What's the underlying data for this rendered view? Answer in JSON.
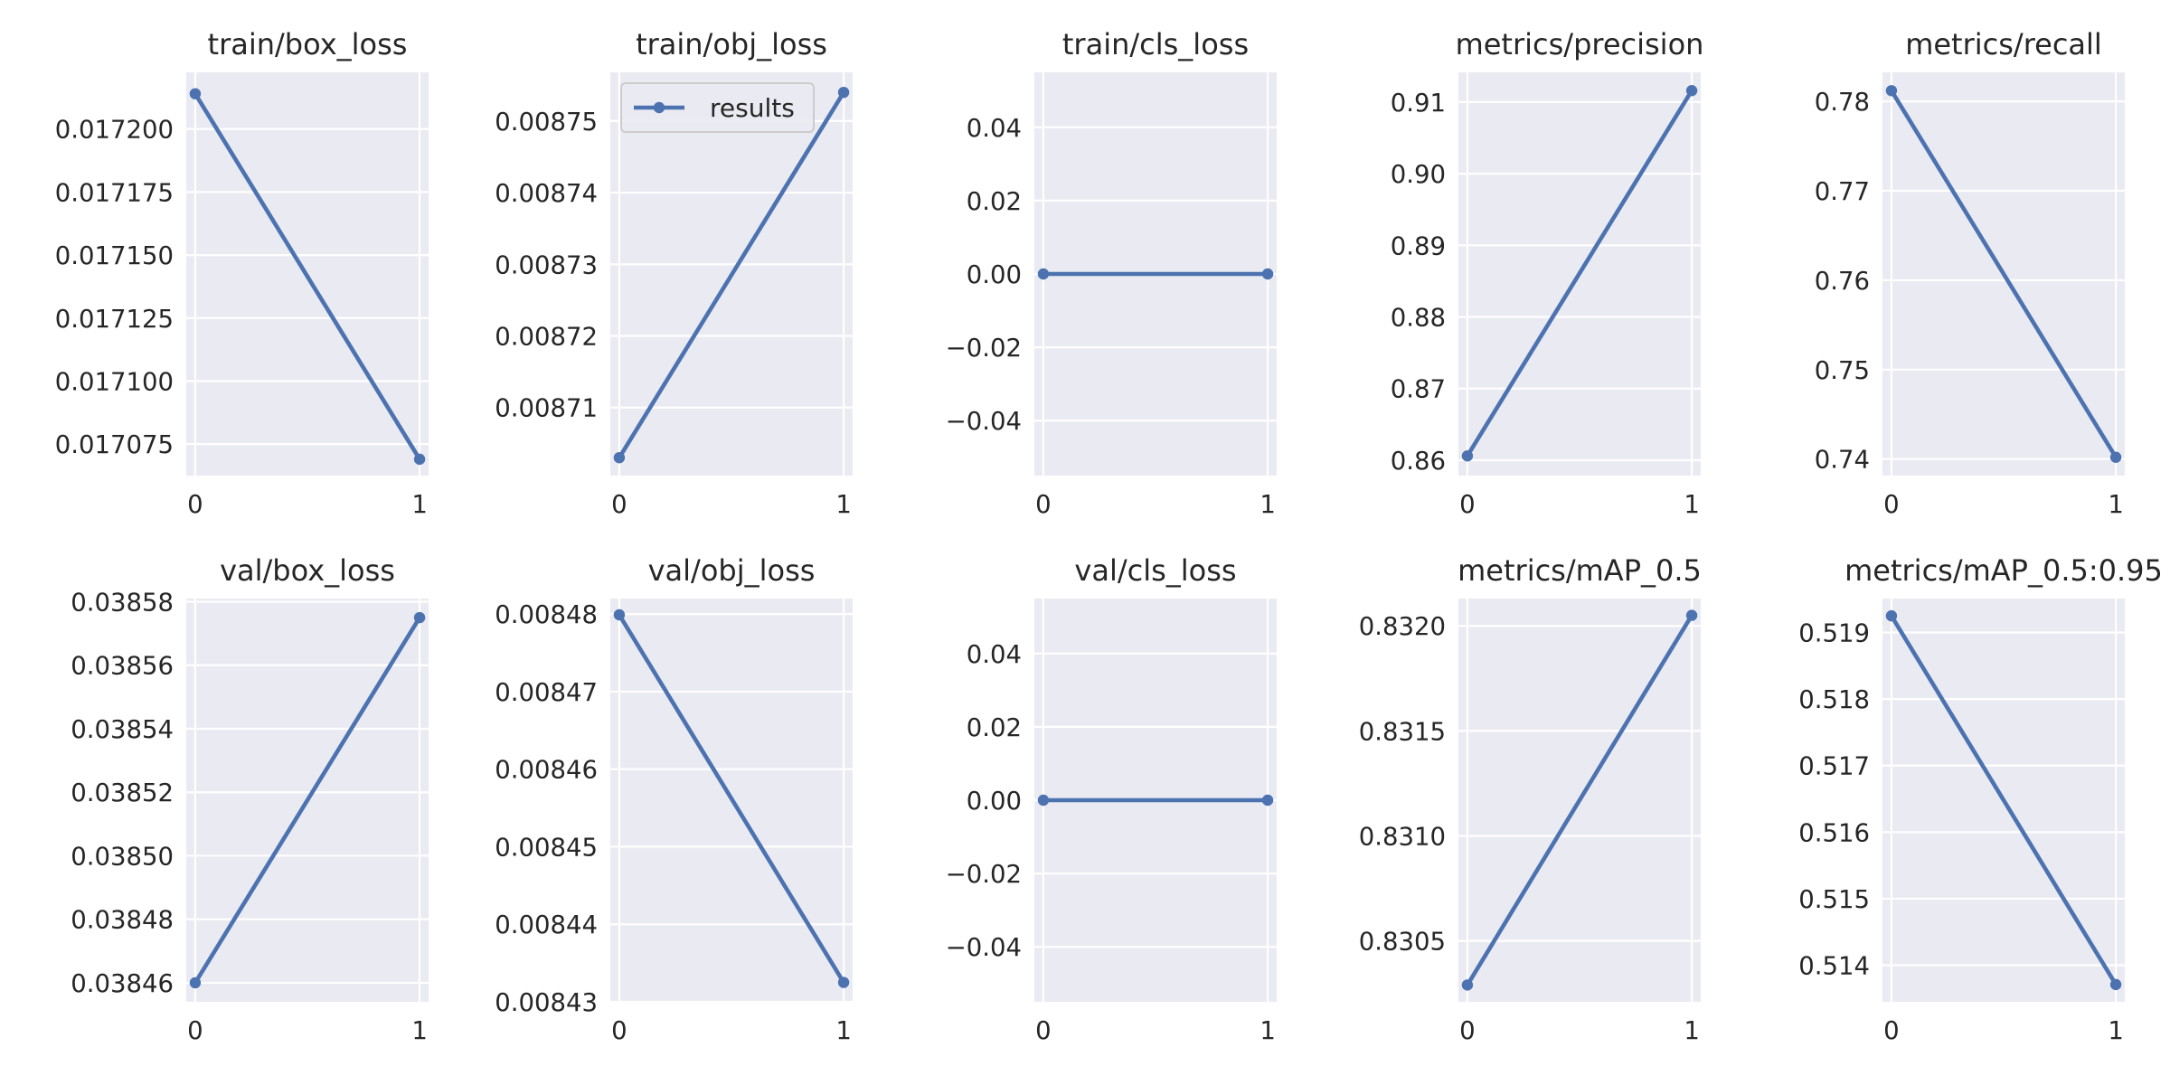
{
  "chart_data": [
    {
      "type": "line",
      "title": "train/box_loss",
      "x": [
        0,
        1
      ],
      "series": [
        {
          "values": [
            0.017214,
            0.017069
          ]
        }
      ],
      "xlim": [
        -0.04,
        1.04
      ],
      "ylim": [
        0.0170625,
        0.0172225
      ],
      "xticks": [
        "0",
        "1"
      ],
      "yticks": [
        {
          "v": 0.017075,
          "label": "0.017075"
        },
        {
          "v": 0.0171,
          "label": "0.017100"
        },
        {
          "v": 0.017125,
          "label": "0.017125"
        },
        {
          "v": 0.01715,
          "label": "0.017150"
        },
        {
          "v": 0.017175,
          "label": "0.017175"
        },
        {
          "v": 0.0172,
          "label": "0.017200"
        }
      ],
      "grid": true
    },
    {
      "type": "line",
      "title": "train/obj_loss",
      "x": [
        0,
        1
      ],
      "series": [
        {
          "name": "results",
          "values": [
            0.008703,
            0.008754
          ]
        }
      ],
      "xlim": [
        -0.04,
        1.04
      ],
      "ylim": [
        0.0087005,
        0.0087568
      ],
      "xticks": [
        "0",
        "1"
      ],
      "yticks": [
        {
          "v": 0.00871,
          "label": "0.00871"
        },
        {
          "v": 0.00872,
          "label": "0.00872"
        },
        {
          "v": 0.00873,
          "label": "0.00873"
        },
        {
          "v": 0.00874,
          "label": "0.00874"
        },
        {
          "v": 0.00875,
          "label": "0.00875"
        }
      ],
      "grid": true,
      "legend": "top-left"
    },
    {
      "type": "line",
      "title": "train/cls_loss",
      "x": [
        0,
        1
      ],
      "series": [
        {
          "values": [
            0,
            0
          ]
        }
      ],
      "xlim": [
        -0.04,
        1.04
      ],
      "ylim": [
        -0.055,
        0.055
      ],
      "xticks": [
        "0",
        "1"
      ],
      "yticks": [
        {
          "v": -0.04,
          "label": "−0.04"
        },
        {
          "v": -0.02,
          "label": "−0.02"
        },
        {
          "v": 0,
          "label": "0.00"
        },
        {
          "v": 0.02,
          "label": "0.02"
        },
        {
          "v": 0.04,
          "label": "0.04"
        }
      ],
      "grid": true
    },
    {
      "type": "line",
      "title": "metrics/precision",
      "x": [
        0,
        1
      ],
      "series": [
        {
          "values": [
            0.8606,
            0.9116
          ]
        }
      ],
      "xlim": [
        -0.04,
        1.04
      ],
      "ylim": [
        0.85785,
        0.91415
      ],
      "xticks": [
        "0",
        "1"
      ],
      "yticks": [
        {
          "v": 0.86,
          "label": "0.86"
        },
        {
          "v": 0.87,
          "label": "0.87"
        },
        {
          "v": 0.88,
          "label": "0.88"
        },
        {
          "v": 0.89,
          "label": "0.89"
        },
        {
          "v": 0.9,
          "label": "0.90"
        },
        {
          "v": 0.91,
          "label": "0.91"
        }
      ],
      "grid": true
    },
    {
      "type": "line",
      "title": "metrics/recall",
      "x": [
        0,
        1
      ],
      "series": [
        {
          "values": [
            0.7812,
            0.7402
          ]
        }
      ],
      "xlim": [
        -0.04,
        1.04
      ],
      "ylim": [
        0.73815,
        0.78325
      ],
      "xticks": [
        "0",
        "1"
      ],
      "yticks": [
        {
          "v": 0.74,
          "label": "0.74"
        },
        {
          "v": 0.75,
          "label": "0.75"
        },
        {
          "v": 0.76,
          "label": "0.76"
        },
        {
          "v": 0.77,
          "label": "0.77"
        },
        {
          "v": 0.78,
          "label": "0.78"
        }
      ],
      "grid": true
    },
    {
      "type": "line",
      "title": "val/box_loss",
      "x": [
        0,
        1
      ],
      "series": [
        {
          "values": [
            0.03846,
            0.038575
          ]
        }
      ],
      "xlim": [
        -0.04,
        1.04
      ],
      "ylim": [
        0.038454,
        0.038581
      ],
      "xticks": [
        "0",
        "1"
      ],
      "yticks": [
        {
          "v": 0.03846,
          "label": "0.03846"
        },
        {
          "v": 0.03848,
          "label": "0.03848"
        },
        {
          "v": 0.0385,
          "label": "0.03850"
        },
        {
          "v": 0.03852,
          "label": "0.03852"
        },
        {
          "v": 0.03854,
          "label": "0.03854"
        },
        {
          "v": 0.03856,
          "label": "0.03856"
        },
        {
          "v": 0.03858,
          "label": "0.03858"
        }
      ],
      "grid": true
    },
    {
      "type": "line",
      "title": "val/obj_loss",
      "x": [
        0,
        1
      ],
      "series": [
        {
          "values": [
            0.0084799,
            0.0084325
          ]
        }
      ],
      "xlim": [
        -0.04,
        1.04
      ],
      "ylim": [
        0.00843,
        0.008482
      ],
      "xticks": [
        "0",
        "1"
      ],
      "yticks": [
        {
          "v": 0.00843,
          "label": "0.00843"
        },
        {
          "v": 0.00844,
          "label": "0.00844"
        },
        {
          "v": 0.00845,
          "label": "0.00845"
        },
        {
          "v": 0.00846,
          "label": "0.00846"
        },
        {
          "v": 0.00847,
          "label": "0.00847"
        },
        {
          "v": 0.00848,
          "label": "0.00848"
        }
      ],
      "grid": true
    },
    {
      "type": "line",
      "title": "val/cls_loss",
      "x": [
        0,
        1
      ],
      "series": [
        {
          "values": [
            0,
            0
          ]
        }
      ],
      "xlim": [
        -0.04,
        1.04
      ],
      "ylim": [
        -0.055,
        0.055
      ],
      "xticks": [
        "0",
        "1"
      ],
      "yticks": [
        {
          "v": -0.04,
          "label": "−0.04"
        },
        {
          "v": -0.02,
          "label": "−0.02"
        },
        {
          "v": 0,
          "label": "0.00"
        },
        {
          "v": 0.02,
          "label": "0.02"
        },
        {
          "v": 0.04,
          "label": "0.04"
        }
      ],
      "grid": true
    },
    {
      "type": "line",
      "title": "metrics/mAP_0.5",
      "x": [
        0,
        1
      ],
      "series": [
        {
          "values": [
            0.83029,
            0.83205
          ]
        }
      ],
      "xlim": [
        -0.04,
        1.04
      ],
      "ylim": [
        0.83021,
        0.83213
      ],
      "xticks": [
        "0",
        "1"
      ],
      "yticks": [
        {
          "v": 0.8305,
          "label": "0.8305"
        },
        {
          "v": 0.831,
          "label": "0.8310"
        },
        {
          "v": 0.8315,
          "label": "0.8315"
        },
        {
          "v": 0.832,
          "label": "0.8320"
        }
      ],
      "grid": true
    },
    {
      "type": "line",
      "title": "metrics/mAP_0.5:0.95",
      "x": [
        0,
        1
      ],
      "series": [
        {
          "values": [
            0.51925,
            0.51371
          ]
        }
      ],
      "xlim": [
        -0.04,
        1.04
      ],
      "ylim": [
        0.51345,
        0.51951
      ],
      "xticks": [
        "0",
        "1"
      ],
      "yticks": [
        {
          "v": 0.514,
          "label": "0.514"
        },
        {
          "v": 0.515,
          "label": "0.515"
        },
        {
          "v": 0.516,
          "label": "0.516"
        },
        {
          "v": 0.517,
          "label": "0.517"
        },
        {
          "v": 0.518,
          "label": "0.518"
        },
        {
          "v": 0.519,
          "label": "0.519"
        }
      ],
      "grid": true
    }
  ],
  "style": {
    "background": "#eaeaf2",
    "grid": "#ffffff",
    "line": "#4c72b0",
    "text": "#262626"
  }
}
